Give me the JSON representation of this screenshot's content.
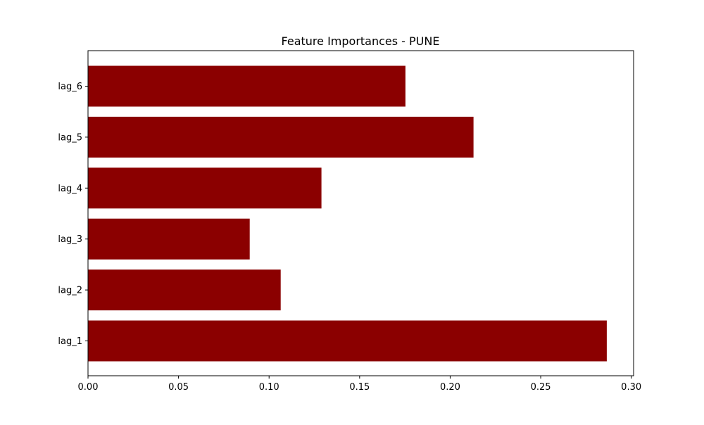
{
  "chart_data": {
    "type": "bar",
    "orientation": "horizontal",
    "title": "Feature Importances - PUNE",
    "xlabel": "",
    "ylabel": "",
    "categories": [
      "lag_1",
      "lag_2",
      "lag_3",
      "lag_4",
      "lag_5",
      "lag_6"
    ],
    "values": [
      0.2865,
      0.1064,
      0.0893,
      0.1289,
      0.2129,
      0.1753
    ],
    "xlim": [
      0,
      0.3013
    ],
    "xticks": [
      "0.00",
      "0.05",
      "0.10",
      "0.15",
      "0.20",
      "0.25",
      "0.30"
    ],
    "xtick_values": [
      0,
      0.05,
      0.1,
      0.15,
      0.2,
      0.25,
      0.3
    ],
    "bar_color": "#8b0000",
    "grid": false,
    "legend": "none"
  }
}
